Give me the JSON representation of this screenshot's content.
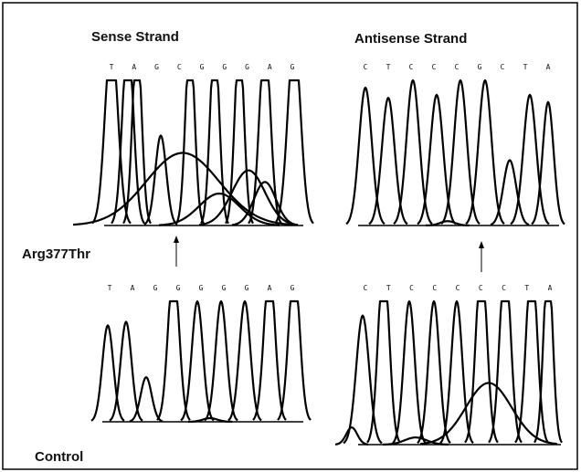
{
  "labels": {
    "sense": "Sense Strand",
    "antisense": "Antisense Strand",
    "mutant": "Arg377Thr",
    "control": "Control"
  },
  "panels": [
    {
      "bases": [
        "T",
        "A",
        "G",
        "C",
        "G",
        "G",
        "G",
        "A",
        "G"
      ]
    },
    {
      "bases": [
        "C",
        "T",
        "C",
        "C",
        "C",
        "G",
        "C",
        "T",
        "A"
      ]
    },
    {
      "bases": [
        "T",
        "A",
        "G",
        "G",
        "G",
        "G",
        "G",
        "A",
        "G"
      ]
    },
    {
      "bases": [
        "C",
        "T",
        "C",
        "C",
        "C",
        "C",
        "C",
        "T",
        "A"
      ]
    }
  ]
}
